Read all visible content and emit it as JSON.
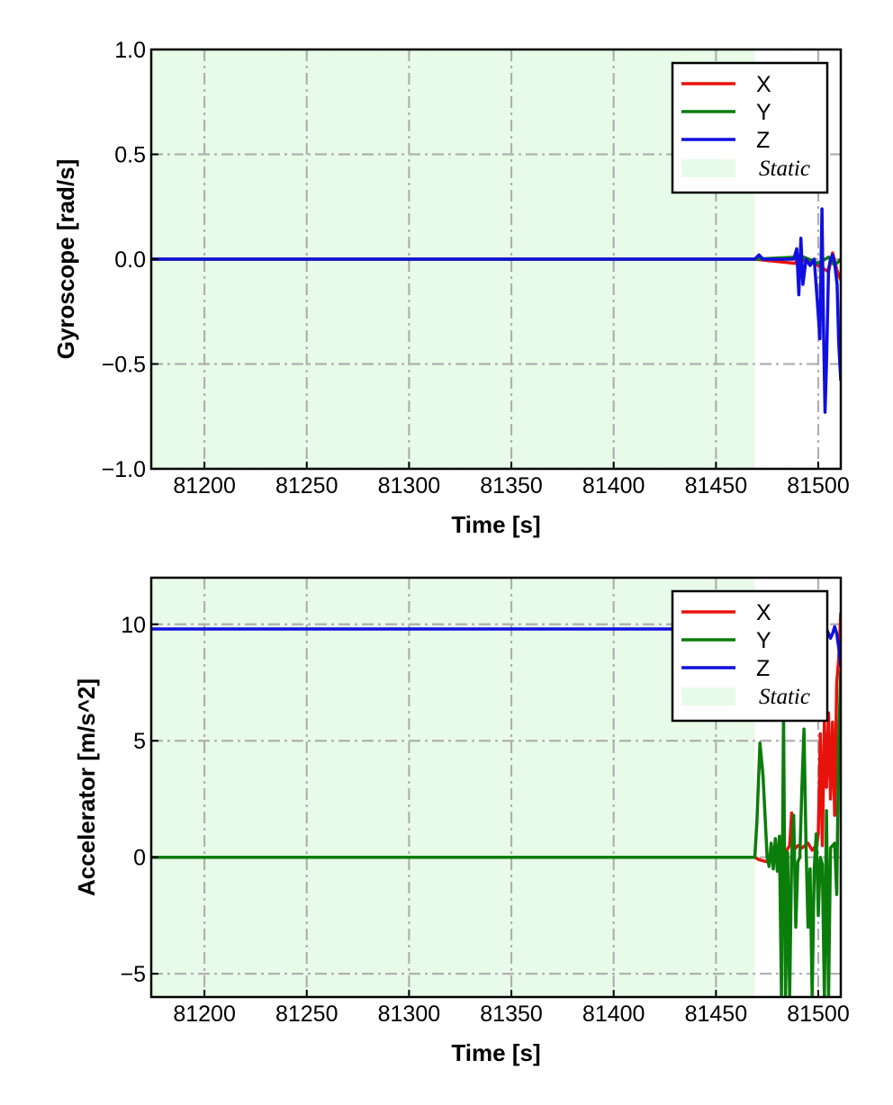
{
  "colors": {
    "X": "#e8120c",
    "Y": "#0a7d0a",
    "Z": "#1010e0",
    "static_fill": "#e8fbe8",
    "grid": "#b0b0b0"
  },
  "chart_data": [
    {
      "type": "line",
      "xlabel": "Time [s]",
      "ylabel": "Gyroscope [rad/s]",
      "xlim": [
        81174,
        81511
      ],
      "ylim": [
        -1.0,
        1.0
      ],
      "xticks": [
        81200,
        81250,
        81300,
        81350,
        81400,
        81450,
        81500
      ],
      "xtick_labels": [
        "81200",
        "81250",
        "81300",
        "81350",
        "81400",
        "81450",
        "81500"
      ],
      "yticks": [
        -1.0,
        -0.5,
        0.0,
        0.5,
        1.0
      ],
      "ytick_labels": [
        "−1.0",
        "−0.5",
        "0.0",
        "0.5",
        "1.0"
      ],
      "grid": true,
      "legend_placement": "top-right",
      "legend": [
        "X",
        "Y",
        "Z",
        "Static"
      ],
      "static_region": [
        81174,
        81469
      ],
      "series": [
        {
          "name": "X",
          "x": [
            81174,
            81469,
            81489,
            81490,
            81491,
            81493,
            81500,
            81505,
            81507,
            81509,
            81511
          ],
          "y": [
            0.0,
            0.0,
            -0.02,
            0.02,
            -0.03,
            0.0,
            -0.03,
            -0.06,
            0.03,
            -0.05,
            -0.1
          ]
        },
        {
          "name": "Y",
          "x": [
            81174,
            81469,
            81489,
            81491,
            81493,
            81500,
            81505,
            81508,
            81511
          ],
          "y": [
            0.0,
            0.0,
            0.01,
            -0.02,
            0.01,
            -0.02,
            0.01,
            -0.03,
            0.0
          ]
        },
        {
          "name": "Z",
          "x": [
            81174,
            81469,
            81471,
            81473,
            81488,
            81489.5,
            81490.5,
            81491.5,
            81492.5,
            81494,
            81496,
            81498,
            81499.5,
            81500.8,
            81501.8,
            81502.6,
            81503.3,
            81504,
            81505,
            81506,
            81507,
            81508,
            81509.2,
            81510,
            81511
          ],
          "y": [
            0.0,
            0.0,
            0.02,
            0.0,
            0.0,
            0.05,
            -0.17,
            0.1,
            -0.12,
            0.0,
            -0.03,
            0.0,
            -0.2,
            -0.38,
            0.24,
            -0.35,
            -0.73,
            -0.5,
            -0.05,
            0.0,
            0.02,
            -0.02,
            -0.12,
            -0.4,
            -0.58
          ]
        }
      ]
    },
    {
      "type": "line",
      "xlabel": "Time [s]",
      "ylabel": "Accelerator [m/s^2]",
      "xlim": [
        81174,
        81511
      ],
      "ylim": [
        -6.0,
        12.0
      ],
      "xticks": [
        81200,
        81250,
        81300,
        81350,
        81400,
        81450,
        81500
      ],
      "xtick_labels": [
        "81200",
        "81250",
        "81300",
        "81350",
        "81400",
        "81450",
        "81500"
      ],
      "yticks": [
        -5,
        0,
        5,
        10
      ],
      "ytick_labels": [
        "−5",
        "0",
        "5",
        "10"
      ],
      "grid": true,
      "legend_placement": "top-right",
      "legend": [
        "X",
        "Y",
        "Z",
        "Static"
      ],
      "static_region": [
        81174,
        81469
      ],
      "series": [
        {
          "name": "X",
          "x": [
            81174,
            81469,
            81471,
            81475,
            81480,
            81484,
            81486,
            81487,
            81488,
            81490,
            81492,
            81495,
            81497,
            81499,
            81500,
            81501,
            81502,
            81503,
            81504,
            81505,
            81506,
            81507,
            81508,
            81509,
            81510,
            81511
          ],
          "y": [
            0.0,
            0.0,
            -0.1,
            -0.2,
            0.0,
            0.2,
            0.5,
            1.9,
            0.3,
            0.5,
            0.4,
            0.6,
            0.3,
            0.5,
            1.0,
            5.3,
            0.5,
            5.8,
            3.0,
            6.2,
            2.5,
            5.8,
            1.8,
            7.5,
            8.5,
            10.5
          ]
        },
        {
          "name": "Y",
          "x": [
            81174,
            81469,
            81470,
            81471.5,
            81473,
            81475,
            81476,
            81477,
            81478,
            81479,
            81480,
            81481,
            81482,
            81483,
            81484,
            81485,
            81486,
            81487,
            81488,
            81489,
            81490,
            81491,
            81492,
            81493,
            81494,
            81495,
            81496,
            81497,
            81498,
            81499,
            81500,
            81501,
            81502,
            81503,
            81504,
            81505,
            81506,
            81507,
            81508,
            81509,
            81510,
            81511
          ],
          "y": [
            0.0,
            0.0,
            1.5,
            4.9,
            3.5,
            0.0,
            -0.4,
            0.6,
            -0.5,
            0.8,
            -0.6,
            0.9,
            -6.0,
            6.2,
            -6.0,
            0.2,
            -6.0,
            0.0,
            1.8,
            -3.0,
            -0.2,
            0.0,
            3.0,
            5.5,
            0.5,
            -3.0,
            -0.5,
            -6.0,
            -0.5,
            1.0,
            -2.5,
            0.0,
            -0.3,
            -6.0,
            2.0,
            -6.0,
            0.4,
            0.5,
            0.6,
            -1.6,
            5.0,
            8.0
          ]
        },
        {
          "name": "Z",
          "x": [
            81174,
            81469,
            81475,
            81480,
            81485,
            81490,
            81495,
            81500,
            81502,
            81504,
            81506,
            81507,
            81508,
            81509,
            81510,
            81511
          ],
          "y": [
            9.8,
            9.8,
            9.8,
            9.8,
            9.8,
            9.8,
            9.8,
            9.8,
            9.5,
            9.8,
            9.4,
            9.6,
            9.9,
            9.6,
            9.0,
            8.2
          ]
        }
      ]
    }
  ]
}
